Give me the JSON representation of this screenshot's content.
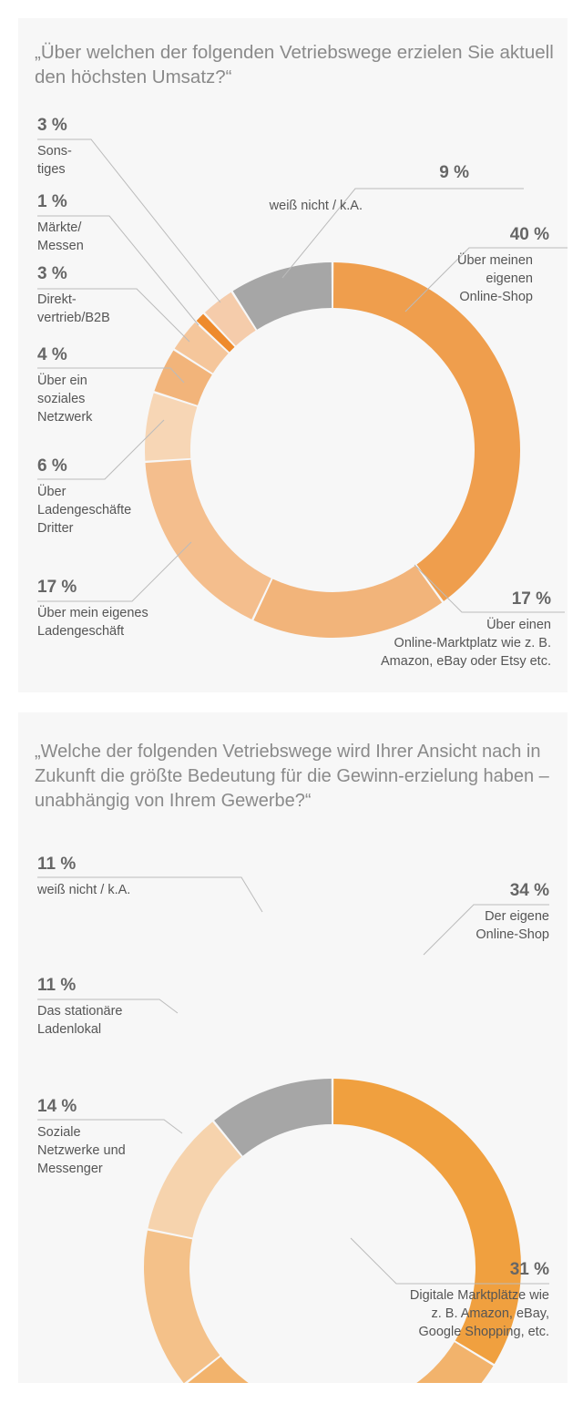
{
  "colors": {
    "panel_bg": "#f7f7f7",
    "title": "#8a8a8a",
    "leader": "#bbbbbb"
  },
  "chart_data": [
    {
      "type": "pie",
      "variant": "donut",
      "title": "„Über welchen der folgenden Vetriebswege erzielen Sie aktuell den höchsten Umsatz?“",
      "slices": [
        {
          "label": "Über meinen eigenen Online-Shop",
          "lines": [
            "Über meinen",
            "eigenen",
            "Online-Shop"
          ],
          "value": 40,
          "display": "40 %",
          "color": "#ef9e4d"
        },
        {
          "label": "Über einen Online-Marktplatz wie z. B. Amazon, eBay oder Etsy etc.",
          "lines": [
            "Über einen",
            "Online-Marktplatz wie z. B.",
            "Amazon, eBay oder Etsy etc."
          ],
          "value": 17,
          "display": "17 %",
          "color": "#f2b47a"
        },
        {
          "label": "Über mein eigenes Ladengeschäft",
          "lines": [
            "Über mein eigenes",
            "Ladengeschäft"
          ],
          "value": 17,
          "display": "17 %",
          "color": "#f4be8d"
        },
        {
          "label": "Über Ladengeschäfte Dritter",
          "lines": [
            "Über",
            "Ladengeschäfte",
            "Dritter"
          ],
          "value": 6,
          "display": "6 %",
          "color": "#f7d6b5"
        },
        {
          "label": "Über ein soziales Netzwerk",
          "lines": [
            "Über ein",
            "soziales",
            "Netzwerk"
          ],
          "value": 4,
          "display": "4 %",
          "color": "#f2b47a"
        },
        {
          "label": "Direktvertrieb/B2B",
          "lines": [
            "Direkt-",
            "vertrieb/B2B"
          ],
          "value": 3,
          "display": "3 %",
          "color": "#f5c69b"
        },
        {
          "label": "Märkte/Messen",
          "lines": [
            "Märkte/",
            "Messen"
          ],
          "value": 1,
          "display": "1 %",
          "color": "#ee8a2c"
        },
        {
          "label": "Sonstiges",
          "lines": [
            "Sons-",
            "tiges"
          ],
          "value": 3,
          "display": "3 %",
          "color": "#f5ccab"
        },
        {
          "label": "weiß nicht / k.A.",
          "lines": [
            "weiß nicht / k.A."
          ],
          "value": 9,
          "display": "9 %",
          "color": "#a6a6a6"
        }
      ]
    },
    {
      "type": "pie",
      "variant": "donut",
      "title": "„Welche der folgenden Vetriebswege wird Ihrer Ansicht nach in Zukunft die größte Bedeutung für die Gewinn-erzielung haben – unabhängig von Ihrem Gewerbe?“",
      "slices": [
        {
          "label": "Der eigene Online-Shop",
          "lines": [
            "Der eigene",
            "Online-Shop"
          ],
          "value": 34,
          "display": "34 %",
          "color": "#f0a03f"
        },
        {
          "label": "Digitale Marktplätze wie z. B. Amazon, eBay, Google Shopping, etc.",
          "lines": [
            "Digitale Marktplätze wie",
            "z. B. Amazon, eBay,",
            "Google Shopping, etc."
          ],
          "value": 31,
          "display": "31 %",
          "color": "#f2b36c"
        },
        {
          "label": "Soziale Netzwerke und Messenger",
          "lines": [
            "Soziale",
            "Netzwerke und",
            "Messenger"
          ],
          "value": 14,
          "display": "14 %",
          "color": "#f4c189"
        },
        {
          "label": "Das stationäre Ladenlokal",
          "lines": [
            "Das stationäre",
            "Ladenlokal"
          ],
          "value": 11,
          "display": "11 %",
          "color": "#f6d3ad"
        },
        {
          "label": "weiß nicht / k.A.",
          "lines": [
            "weiß nicht / k.A."
          ],
          "value": 11,
          "display": "11 %",
          "color": "#a6a6a6"
        }
      ]
    }
  ]
}
